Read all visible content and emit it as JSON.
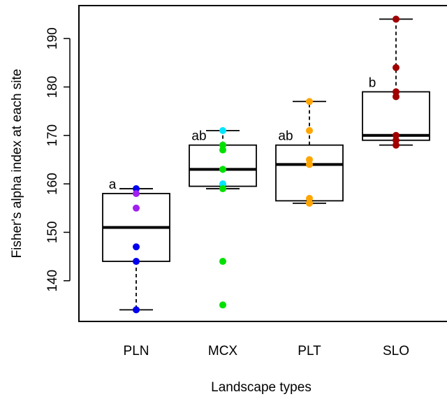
{
  "chart_data": {
    "type": "box",
    "x_label": "Landscape types",
    "y_label": "Fisher's alpha index at each site",
    "categories": [
      "PLN",
      "MCX",
      "PLT",
      "SLO"
    ],
    "ylim": [
      131.6,
      196.8
    ],
    "yticks": [
      140,
      150,
      160,
      170,
      180,
      190
    ],
    "group_labels": [
      "a",
      "ab",
      "ab",
      "b"
    ],
    "boxes": [
      {
        "whisker_low": 134,
        "q1": 144,
        "median": 151,
        "q3": 158,
        "whisker_high": 159,
        "points": [
          159,
          158,
          155,
          147,
          144,
          134
        ],
        "point_colors": [
          "#0000ee",
          "#a020f0",
          "#a020f0",
          "#0000ee",
          "#0000ee",
          "#0000ee"
        ]
      },
      {
        "whisker_low": 159,
        "q1": 159.5,
        "median": 163,
        "q3": 168,
        "whisker_high": 171,
        "points": [
          171,
          168,
          167,
          163,
          160,
          159,
          144,
          135
        ],
        "point_colors": [
          "#00e5ff",
          "#00e000",
          "#00e000",
          "#00e000",
          "#00e5ff",
          "#00e000",
          "#00e000",
          "#00e000"
        ]
      },
      {
        "whisker_low": 156,
        "q1": 156.5,
        "median": 164,
        "q3": 168,
        "whisker_high": 177,
        "points": [
          177,
          171,
          165,
          164,
          157,
          156
        ],
        "point_colors": [
          "#ffa500",
          "#ffa500",
          "#ffa500",
          "#ffa500",
          "#ffa500",
          "#ffa500"
        ]
      },
      {
        "whisker_low": 168,
        "q1": 169,
        "median": 170,
        "q3": 179,
        "whisker_high": 194,
        "points": [
          194,
          184,
          179,
          178,
          170,
          169,
          168
        ],
        "point_colors": [
          "#a00000",
          "#a00000",
          "#a00000",
          "#a00000",
          "#a00000",
          "#a00000",
          "#a00000"
        ]
      }
    ]
  }
}
